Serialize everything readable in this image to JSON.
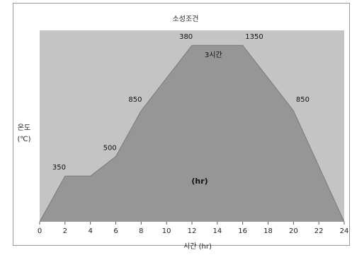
{
  "chart_data": {
    "type": "area",
    "title": "소성조건",
    "xlabel": "시간 (hr)",
    "ylabel_line1": "온도",
    "ylabel_line2": "(℃)",
    "x_ticks": [
      "0",
      "2",
      "4",
      "6",
      "8",
      "10",
      "12",
      "14",
      "16",
      "18",
      "20",
      "22",
      "24"
    ],
    "xlim": [
      0,
      24
    ],
    "points": [
      {
        "x": 0,
        "y": 0
      },
      {
        "x": 2,
        "y": 350
      },
      {
        "x": 4,
        "y": 350
      },
      {
        "x": 6,
        "y": 500
      },
      {
        "x": 8,
        "y": 850
      },
      {
        "x": 12,
        "y": 1350
      },
      {
        "x": 16,
        "y": 1350
      },
      {
        "x": 20,
        "y": 850
      },
      {
        "x": 24,
        "y": 0
      }
    ],
    "ylim": [
      0,
      1400
    ],
    "annotations": [
      {
        "text": "350",
        "x": 1.0,
        "y": 400
      },
      {
        "text": "500",
        "x": 5.0,
        "y": 550
      },
      {
        "text": "850",
        "x": 7.0,
        "y": 920
      },
      {
        "text": "380",
        "x": 11.0,
        "y": 1400
      },
      {
        "text": "1350",
        "x": 16.2,
        "y": 1400
      },
      {
        "text": "3시간",
        "x": 13.0,
        "y": 1260
      },
      {
        "text": "850",
        "x": 20.2,
        "y": 920
      }
    ],
    "center_label": "(hr)",
    "grid": false,
    "colors": {
      "plot_bg": "#c4c4c4",
      "fill": "#969696",
      "line": "#7a7a7a"
    }
  }
}
